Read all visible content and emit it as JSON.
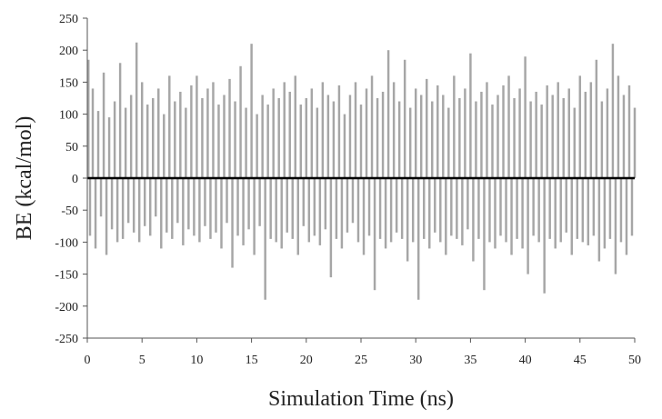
{
  "chart_data": {
    "type": "bar",
    "title": "",
    "xlabel": "Simulation Time (ns)",
    "ylabel": "BE (kcal/mol)",
    "xlim": [
      0,
      50
    ],
    "ylim": [
      -250,
      250
    ],
    "x_ticks": [
      "0",
      "5",
      "10",
      "15",
      "20",
      "25",
      "30",
      "35",
      "40",
      "45",
      "50"
    ],
    "y_ticks": [
      "250",
      "200",
      "150",
      "100",
      "50",
      "0",
      "-50",
      "-100",
      "-150",
      "-200",
      "-250"
    ],
    "grid": false,
    "legend": "none",
    "bar_color": "#a6a6a6",
    "zero_line_color": "#000000",
    "series": [
      {
        "x": [
          0.0,
          0.25,
          0.5,
          0.75,
          1.0,
          1.25,
          1.5,
          1.75,
          2.0,
          2.25,
          2.5,
          2.75,
          3.0,
          3.25,
          3.5,
          3.75,
          4.0,
          4.25,
          4.5,
          4.75,
          5.0,
          5.25,
          5.5,
          5.75,
          6.0,
          6.25,
          6.5,
          6.75,
          7.0,
          7.25,
          7.5,
          7.75,
          8.0,
          8.25,
          8.5,
          8.75,
          9.0,
          9.25,
          9.5,
          9.75,
          10.0,
          10.25,
          10.5,
          10.75,
          11.0,
          11.25,
          11.5,
          11.75,
          12.0,
          12.25,
          12.5,
          12.75,
          13.0,
          13.25,
          13.5,
          13.75,
          14.0,
          14.25,
          14.5,
          14.75,
          15.0,
          15.25,
          15.5,
          15.75,
          16.0,
          16.25,
          16.5,
          16.75,
          17.0,
          17.25,
          17.5,
          17.75,
          18.0,
          18.25,
          18.5,
          18.75,
          19.0,
          19.25,
          19.5,
          19.75,
          20.0,
          20.25,
          20.5,
          20.75,
          21.0,
          21.25,
          21.5,
          21.75,
          22.0,
          22.25,
          22.5,
          22.75,
          23.0,
          23.25,
          23.5,
          23.75,
          24.0,
          24.25,
          24.5,
          24.75,
          25.0,
          25.25,
          25.5,
          25.75,
          26.0,
          26.25,
          26.5,
          26.75,
          27.0,
          27.25,
          27.5,
          27.75,
          28.0,
          28.25,
          28.5,
          28.75,
          29.0,
          29.25,
          29.5,
          29.75,
          30.0,
          30.25,
          30.5,
          30.75,
          31.0,
          31.25,
          31.5,
          31.75,
          32.0,
          32.25,
          32.5,
          32.75,
          33.0,
          33.25,
          33.5,
          33.75,
          34.0,
          34.25,
          34.5,
          34.75,
          35.0,
          35.25,
          35.5,
          35.75,
          36.0,
          36.25,
          36.5,
          36.75,
          37.0,
          37.25,
          37.5,
          37.75,
          38.0,
          38.25,
          38.5,
          38.75,
          39.0,
          39.25,
          39.5,
          39.75,
          40.0,
          40.25,
          40.5,
          40.75,
          41.0,
          41.25,
          41.5,
          41.75,
          42.0,
          42.25,
          42.5,
          42.75,
          43.0,
          43.25,
          43.5,
          43.75,
          44.0,
          44.25,
          44.5,
          44.75,
          45.0,
          45.25,
          45.5,
          45.75,
          46.0,
          46.25,
          46.5,
          46.75,
          47.0,
          47.25,
          47.5,
          47.75,
          48.0,
          48.25,
          48.5,
          48.75,
          49.0,
          49.25,
          49.5,
          49.75,
          50.0
        ],
        "values": [
          185,
          -90,
          140,
          -110,
          105,
          -60,
          165,
          -120,
          95,
          -80,
          120,
          -100,
          180,
          -95,
          110,
          -70,
          130,
          -85,
          212,
          -100,
          150,
          -75,
          115,
          -90,
          125,
          -60,
          140,
          -110,
          100,
          -85,
          160,
          -95,
          120,
          -70,
          135,
          -105,
          110,
          -80,
          145,
          -90,
          160,
          -100,
          125,
          -75,
          140,
          -95,
          150,
          -85,
          115,
          -110,
          130,
          -70,
          155,
          -140,
          120,
          -90,
          175,
          -105,
          110,
          -80,
          210,
          -120,
          100,
          -75,
          130,
          -190,
          115,
          -95,
          140,
          -100,
          125,
          -110,
          150,
          -85,
          135,
          -95,
          160,
          -120,
          115,
          -75,
          125,
          -100,
          140,
          -90,
          110,
          -105,
          150,
          -80,
          130,
          -155,
          120,
          -95,
          145,
          -110,
          100,
          -85,
          130,
          -70,
          150,
          -100,
          115,
          -120,
          140,
          -90,
          160,
          -175,
          125,
          -95,
          135,
          -110,
          200,
          -100,
          150,
          -85,
          120,
          -95,
          185,
          -130,
          110,
          -100,
          140,
          -190,
          130,
          -95,
          155,
          -110,
          120,
          -85,
          145,
          -100,
          130,
          -120,
          110,
          -90,
          160,
          -95,
          125,
          -105,
          140,
          -80,
          195,
          -130,
          120,
          -95,
          135,
          -175,
          150,
          -100,
          115,
          -110,
          130,
          -90,
          145,
          -100,
          160,
          -120,
          125,
          -95,
          140,
          -110,
          190,
          -150,
          120,
          -90,
          135,
          -100,
          115,
          -180,
          145,
          -95,
          130,
          -110,
          150,
          -100,
          125,
          -85,
          140,
          -120,
          110,
          -95,
          160,
          -100,
          135,
          -105,
          150,
          -90,
          185,
          -130,
          120,
          -110,
          140,
          -95,
          210,
          -150,
          160,
          -100,
          130,
          -120,
          145,
          -90,
          110
        ]
      }
    ]
  }
}
